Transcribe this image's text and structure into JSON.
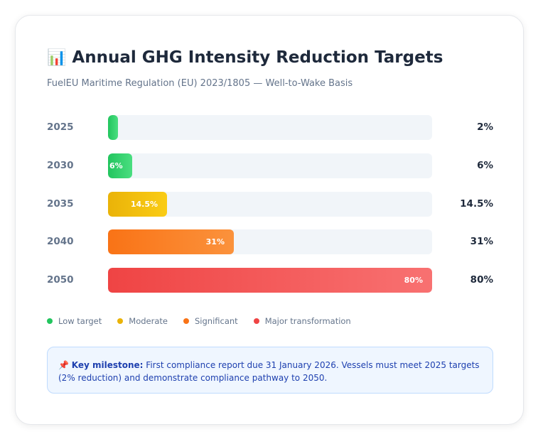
{
  "header": {
    "emoji": "📊",
    "title": "Annual GHG Intensity Reduction Targets",
    "subtitle": "FuelEU Maritime Regulation (EU) 2023/1805 — Well-to-Wake Basis"
  },
  "chart_data": {
    "type": "bar",
    "orientation": "horizontal",
    "categories": [
      "2025",
      "2030",
      "2035",
      "2040",
      "2050"
    ],
    "values": [
      2,
      6,
      14.5,
      31,
      80
    ],
    "value_labels": [
      "2%",
      "6%",
      "14.5%",
      "31%",
      "80%"
    ],
    "inner_labels": [
      "",
      "6%",
      "14.5%",
      "31%",
      "80%"
    ],
    "xlim": [
      0,
      80
    ],
    "tiers": [
      "low",
      "low",
      "moderate",
      "significant",
      "major"
    ]
  },
  "colors": {
    "low": [
      "#22c55e",
      "#4ade80"
    ],
    "moderate": [
      "#eab308",
      "#facc15"
    ],
    "significant": [
      "#f97316",
      "#fb923c"
    ],
    "major": [
      "#ef4444",
      "#f87171"
    ]
  },
  "legend": [
    {
      "label": "Low target",
      "color": "#22c55e"
    },
    {
      "label": "Moderate",
      "color": "#eab308"
    },
    {
      "label": "Significant",
      "color": "#f97316"
    },
    {
      "label": "Major transformation",
      "color": "#ef4444"
    }
  ],
  "note": {
    "icon": "📌",
    "bold": "Key milestone:",
    "text": " First compliance report due 31 January 2026. Vessels must meet 2025 targets (2% reduction) and demonstrate compliance pathway to 2050."
  }
}
